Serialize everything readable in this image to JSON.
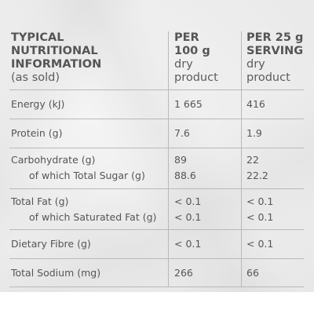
{
  "header": {
    "col0": {
      "line1": "TYPICAL",
      "line2": "NUTRITIONAL",
      "line3": "INFORMATION",
      "line4": "(as sold)"
    },
    "col1": {
      "line1": "PER",
      "line2": "100 g",
      "line3": "dry",
      "line4": "product"
    },
    "col2": {
      "line1": "PER 25 g",
      "line2": "SERVING",
      "line3": "dry",
      "line4": "product"
    }
  },
  "rows": [
    {
      "label": "Energy (kJ)",
      "per100": "1 665",
      "serving": "416"
    },
    {
      "label": "Protein (g)",
      "per100": "7.6",
      "serving": "1.9"
    },
    {
      "label": "Carbohydrate (g)",
      "per100": "89",
      "serving": "22",
      "sub_label": "of which Total Sugar (g)",
      "sub_per100": "88.6",
      "sub_serving": "22.2"
    },
    {
      "label": "Total Fat (g)",
      "per100": "< 0.1",
      "serving": "< 0.1",
      "sub_label": "of which Saturated Fat (g)",
      "sub_per100": "< 0.1",
      "sub_serving": "< 0.1"
    },
    {
      "label": "Dietary Fibre (g)",
      "per100": "< 0.1",
      "serving": "< 0.1"
    },
    {
      "label": "Total Sodium (mg)",
      "per100": "266",
      "serving": "66"
    }
  ],
  "colors": {
    "text": "#555555",
    "rule": "#b9b9b9",
    "background": "#ececec"
  }
}
